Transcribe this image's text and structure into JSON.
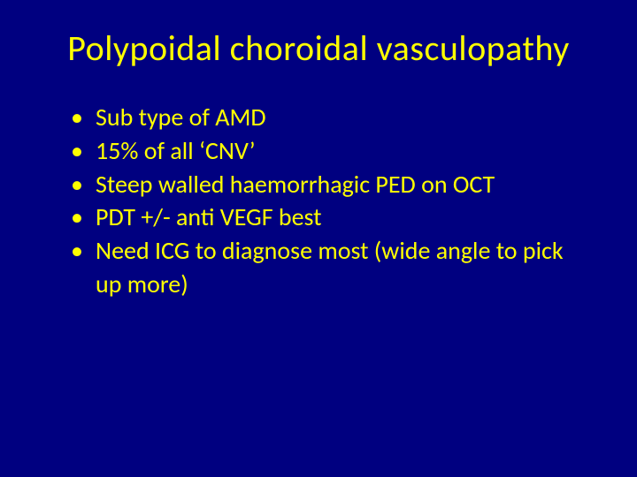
{
  "slide": {
    "title": "Polypoidal choroidal vasculopathy",
    "bullets": [
      "Sub type of AMD",
      "15% of all ‘CNV’",
      "Steep walled haemorrhagic PED on OCT",
      "PDT +/- anti VEGF best",
      "Need ICG to diagnose most (wide angle to pick up more)"
    ],
    "colors": {
      "background": "#000080",
      "text": "#ffff00"
    },
    "typography": {
      "title_fontsize": 40,
      "bullet_fontsize": 28,
      "font_family": "Calibri"
    }
  }
}
